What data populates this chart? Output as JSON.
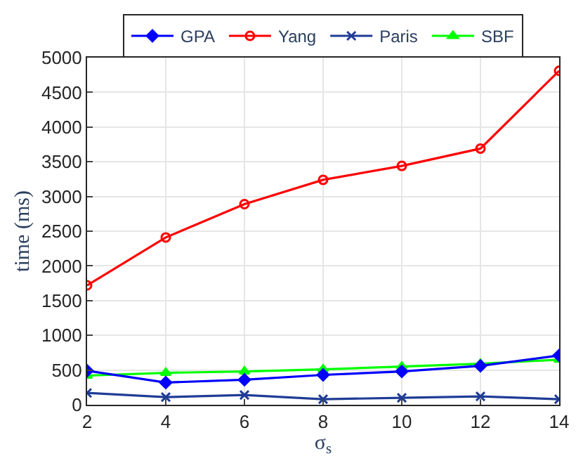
{
  "chart_data": {
    "type": "line",
    "xlabel": "σ$_{s}$",
    "ylabel": "time (ms)",
    "x": [
      2,
      4,
      6,
      8,
      10,
      12,
      14
    ],
    "xlim": [
      2,
      14
    ],
    "xticks": [
      2,
      4,
      6,
      8,
      10,
      12,
      14
    ],
    "ylim": [
      0,
      5000
    ],
    "yticks": [
      0,
      500,
      1000,
      1500,
      2000,
      2500,
      3000,
      3500,
      4000,
      4500,
      5000
    ],
    "grid": true,
    "legend": "top",
    "line_style": "solid",
    "series": [
      {
        "name": "GPA",
        "color": "#0000ff",
        "marker": "diamond",
        "values": [
          490,
          320,
          360,
          430,
          480,
          560,
          710
        ]
      },
      {
        "name": "Yang",
        "color": "#ff0000",
        "marker": "circle",
        "values": [
          1720,
          2410,
          2890,
          3240,
          3440,
          3690,
          4810
        ]
      },
      {
        "name": "Paris",
        "color": "#1f3c96",
        "marker": "cross",
        "values": [
          170,
          110,
          140,
          80,
          100,
          120,
          80
        ]
      },
      {
        "name": "SBF",
        "color": "#00ff00",
        "marker": "triangle",
        "values": [
          420,
          460,
          480,
          510,
          550,
          590,
          650
        ]
      }
    ]
  }
}
